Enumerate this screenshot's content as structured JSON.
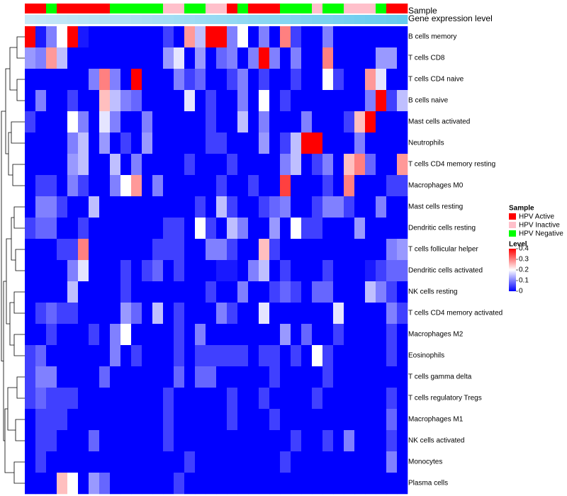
{
  "chart_data": {
    "type": "heatmap",
    "rows": [
      "B cells memory",
      "T cells CD8",
      "T cells CD4 naive",
      "B cells naive",
      "Mast cells activated",
      "Neutrophils",
      "T cells CD4 memory resting",
      "Macrophages M0",
      "Mast cells resting",
      "Dendritic cells resting",
      "T cells follicular helper",
      "Dendritic cells activated",
      "NK cells resting",
      "T cells CD4 memory activated",
      "Macrophages M2",
      "Eosinophils",
      "T cells gamma delta",
      "T cells regulatory  Tregs",
      "Macrophages M1",
      "NK cells activated",
      "Monocytes",
      "Plasma cells"
    ],
    "columns_count": 36,
    "sample_groups": [
      "HPV Active",
      "HPV Active",
      "HPV Negative",
      "HPV Active",
      "HPV Active",
      "HPV Active",
      "HPV Active",
      "HPV Active",
      "HPV Negative",
      "HPV Negative",
      "HPV Negative",
      "HPV Negative",
      "HPV Negative",
      "HPV Inactive",
      "HPV Inactive",
      "HPV Negative",
      "HPV Negative",
      "HPV Inactive",
      "HPV Inactive",
      "HPV Active",
      "HPV Negative",
      "HPV Active",
      "HPV Active",
      "HPV Active",
      "HPV Negative",
      "HPV Negative",
      "HPV Negative",
      "HPV Inactive",
      "HPV Negative",
      "HPV Negative",
      "HPV Inactive",
      "HPV Inactive",
      "HPV Inactive",
      "HPV Negative",
      "HPV Active",
      "HPV Active"
    ],
    "values": [
      [
        0.4,
        0.02,
        0.1,
        0.2,
        0.4,
        0.02,
        0.0,
        0.0,
        0.0,
        0.0,
        0.0,
        0.0,
        0.0,
        0.05,
        0.0,
        0.28,
        0.15,
        0.4,
        0.4,
        0.1,
        0.2,
        0.0,
        0.1,
        0.0,
        0.3,
        0.05,
        0.0,
        0.0,
        0.1,
        0.0,
        0.0,
        0.0,
        0.0,
        0.0,
        0.0,
        0.0
      ],
      [
        0.12,
        0.1,
        0.28,
        0.15,
        0.0,
        0.0,
        0.0,
        0.0,
        0.0,
        0.0,
        0.0,
        0.0,
        0.0,
        0.12,
        0.18,
        0.0,
        0.12,
        0.0,
        0.08,
        0.1,
        0.0,
        0.1,
        0.4,
        0.1,
        0.0,
        0.1,
        0.0,
        0.0,
        0.3,
        0.0,
        0.0,
        0.0,
        0.0,
        0.12,
        0.12,
        0.0
      ],
      [
        0.0,
        0.0,
        0.0,
        0.0,
        0.0,
        0.0,
        0.1,
        0.3,
        0.1,
        0.0,
        0.4,
        0.0,
        0.0,
        0.0,
        0.1,
        0.05,
        0.08,
        0.0,
        0.0,
        0.05,
        0.1,
        0.0,
        0.05,
        0.0,
        0.0,
        0.05,
        0.0,
        0.0,
        0.2,
        0.05,
        0.0,
        0.0,
        0.28,
        0.18,
        0.0,
        0.0
      ],
      [
        0.0,
        0.1,
        0.0,
        0.0,
        0.05,
        0.0,
        0.0,
        0.25,
        0.15,
        0.1,
        0.08,
        0.0,
        0.0,
        0.0,
        0.0,
        0.18,
        0.0,
        0.05,
        0.0,
        0.0,
        0.1,
        0.0,
        0.2,
        0.0,
        0.05,
        0.0,
        0.0,
        0.0,
        0.0,
        0.0,
        0.0,
        0.0,
        0.1,
        0.4,
        0.05,
        0.15
      ],
      [
        0.05,
        0.0,
        0.0,
        0.0,
        0.2,
        0.1,
        0.0,
        0.18,
        0.1,
        0.0,
        0.0,
        0.1,
        0.0,
        0.0,
        0.0,
        0.0,
        0.0,
        0.05,
        0.0,
        0.0,
        0.15,
        0.0,
        0.1,
        0.0,
        0.0,
        0.0,
        0.1,
        0.0,
        0.0,
        0.0,
        0.05,
        0.25,
        0.4,
        0.0,
        0.0,
        0.0
      ],
      [
        0.0,
        0.0,
        0.0,
        0.0,
        0.1,
        0.15,
        0.0,
        0.12,
        0.0,
        0.05,
        0.0,
        0.12,
        0.0,
        0.0,
        0.0,
        0.0,
        0.0,
        0.05,
        0.05,
        0.0,
        0.0,
        0.0,
        0.12,
        0.0,
        0.05,
        0.15,
        0.4,
        0.4,
        0.0,
        0.0,
        0.0,
        0.1,
        0.0,
        0.0,
        0.0,
        0.0
      ],
      [
        0.0,
        0.0,
        0.0,
        0.0,
        0.12,
        0.15,
        0.0,
        0.0,
        0.15,
        0.0,
        0.1,
        0.0,
        0.0,
        0.0,
        0.0,
        0.05,
        0.0,
        0.0,
        0.0,
        0.05,
        0.0,
        0.0,
        0.0,
        0.0,
        0.1,
        0.15,
        0.0,
        0.05,
        0.1,
        0.0,
        0.25,
        0.3,
        0.08,
        0.0,
        0.0,
        0.28
      ],
      [
        0.0,
        0.05,
        0.05,
        0.0,
        0.1,
        0.05,
        0.0,
        0.0,
        0.1,
        0.2,
        0.28,
        0.0,
        0.1,
        0.0,
        0.0,
        0.0,
        0.0,
        0.0,
        0.05,
        0.0,
        0.0,
        0.05,
        0.0,
        0.0,
        0.35,
        0.0,
        0.0,
        0.0,
        0.05,
        0.0,
        0.3,
        0.0,
        0.0,
        0.0,
        0.05,
        0.05
      ],
      [
        0.0,
        0.1,
        0.1,
        0.05,
        0.0,
        0.0,
        0.15,
        0.0,
        0.0,
        0.0,
        0.0,
        0.0,
        0.0,
        0.0,
        0.0,
        0.0,
        0.05,
        0.0,
        0.15,
        0.05,
        0.0,
        0.0,
        0.05,
        0.08,
        0.1,
        0.0,
        0.0,
        0.05,
        0.1,
        0.1,
        0.05,
        0.0,
        0.0,
        0.1,
        0.0,
        0.0
      ],
      [
        0.05,
        0.08,
        0.08,
        0.0,
        0.0,
        0.05,
        0.0,
        0.0,
        0.0,
        0.0,
        0.0,
        0.0,
        0.0,
        0.05,
        0.05,
        0.0,
        0.2,
        0.05,
        0.0,
        0.15,
        0.1,
        0.0,
        0.0,
        0.12,
        0.0,
        0.2,
        0.05,
        0.05,
        0.0,
        0.0,
        0.0,
        0.12,
        0.0,
        0.0,
        0.0,
        0.0
      ],
      [
        0.0,
        0.0,
        0.0,
        0.05,
        0.05,
        0.3,
        0.0,
        0.0,
        0.0,
        0.0,
        0.0,
        0.0,
        0.05,
        0.05,
        0.05,
        0.0,
        0.0,
        0.1,
        0.1,
        0.05,
        0.0,
        0.0,
        0.25,
        0.05,
        0.0,
        0.0,
        0.0,
        0.0,
        0.0,
        0.0,
        0.0,
        0.0,
        0.0,
        0.0,
        0.1,
        0.12
      ],
      [
        0.0,
        0.0,
        0.0,
        0.0,
        0.1,
        0.18,
        0.0,
        0.0,
        0.0,
        0.05,
        0.0,
        0.05,
        0.08,
        0.0,
        0.05,
        0.0,
        0.0,
        0.0,
        0.02,
        0.02,
        0.0,
        0.1,
        0.15,
        0.0,
        0.05,
        0.0,
        0.0,
        0.0,
        0.05,
        0.0,
        0.0,
        0.0,
        0.02,
        0.05,
        0.08,
        0.08
      ],
      [
        0.0,
        0.0,
        0.0,
        0.0,
        0.15,
        0.0,
        0.0,
        0.0,
        0.0,
        0.05,
        0.0,
        0.0,
        0.0,
        0.0,
        0.0,
        0.0,
        0.0,
        0.05,
        0.0,
        0.0,
        0.1,
        0.0,
        0.0,
        0.05,
        0.08,
        0.05,
        0.0,
        0.08,
        0.08,
        0.0,
        0.0,
        0.0,
        0.15,
        0.1,
        0.05,
        0.0
      ],
      [
        0.0,
        0.05,
        0.08,
        0.05,
        0.05,
        0.0,
        0.0,
        0.0,
        0.0,
        0.12,
        0.08,
        0.0,
        0.15,
        0.0,
        0.05,
        0.0,
        0.0,
        0.0,
        0.1,
        0.05,
        0.0,
        0.0,
        0.18,
        0.0,
        0.0,
        0.0,
        0.0,
        0.0,
        0.0,
        0.18,
        0.0,
        0.0,
        0.0,
        0.0,
        0.1,
        0.05
      ],
      [
        0.0,
        0.0,
        0.05,
        0.0,
        0.0,
        0.0,
        0.05,
        0.0,
        0.1,
        0.2,
        0.0,
        0.0,
        0.0,
        0.0,
        0.05,
        0.0,
        0.1,
        0.0,
        0.0,
        0.0,
        0.0,
        0.0,
        0.0,
        0.0,
        0.12,
        0.0,
        0.08,
        0.0,
        0.0,
        0.05,
        0.0,
        0.0,
        0.0,
        0.0,
        0.05,
        0.0
      ],
      [
        0.05,
        0.08,
        0.0,
        0.0,
        0.0,
        0.0,
        0.0,
        0.0,
        0.1,
        0.0,
        0.05,
        0.0,
        0.0,
        0.0,
        0.05,
        0.0,
        0.05,
        0.05,
        0.05,
        0.05,
        0.05,
        0.0,
        0.05,
        0.05,
        0.0,
        0.05,
        0.0,
        0.2,
        0.05,
        0.0,
        0.0,
        0.0,
        0.0,
        0.0,
        0.05,
        0.0
      ],
      [
        0.05,
        0.1,
        0.1,
        0.0,
        0.0,
        0.0,
        0.0,
        0.08,
        0.0,
        0.0,
        0.0,
        0.0,
        0.0,
        0.0,
        0.08,
        0.0,
        0.08,
        0.08,
        0.0,
        0.0,
        0.0,
        0.0,
        0.0,
        0.05,
        0.0,
        0.0,
        0.0,
        0.0,
        0.05,
        0.0,
        0.0,
        0.0,
        0.0,
        0.0,
        0.0,
        0.0
      ],
      [
        0.05,
        0.08,
        0.05,
        0.05,
        0.05,
        0.0,
        0.0,
        0.0,
        0.0,
        0.0,
        0.0,
        0.0,
        0.0,
        0.05,
        0.0,
        0.0,
        0.0,
        0.0,
        0.0,
        0.05,
        0.0,
        0.0,
        0.05,
        0.0,
        0.0,
        0.0,
        0.0,
        0.05,
        0.0,
        0.0,
        0.0,
        0.0,
        0.0,
        0.0,
        0.05,
        0.0
      ],
      [
        0.0,
        0.05,
        0.05,
        0.05,
        0.0,
        0.0,
        0.0,
        0.0,
        0.0,
        0.0,
        0.0,
        0.0,
        0.0,
        0.05,
        0.0,
        0.0,
        0.0,
        0.0,
        0.0,
        0.05,
        0.0,
        0.0,
        0.0,
        0.05,
        0.0,
        0.0,
        0.0,
        0.0,
        0.0,
        0.0,
        0.0,
        0.0,
        0.0,
        0.0,
        0.08,
        0.0
      ],
      [
        0.0,
        0.05,
        0.05,
        0.0,
        0.0,
        0.0,
        0.08,
        0.0,
        0.0,
        0.0,
        0.0,
        0.0,
        0.0,
        0.05,
        0.0,
        0.0,
        0.0,
        0.0,
        0.0,
        0.0,
        0.0,
        0.0,
        0.0,
        0.0,
        0.0,
        0.05,
        0.0,
        0.0,
        0.05,
        0.0,
        0.1,
        0.0,
        0.0,
        0.0,
        0.05,
        0.0
      ],
      [
        0.0,
        0.05,
        0.0,
        0.0,
        0.0,
        0.0,
        0.0,
        0.0,
        0.0,
        0.0,
        0.0,
        0.0,
        0.0,
        0.0,
        0.0,
        0.05,
        0.0,
        0.0,
        0.0,
        0.0,
        0.0,
        0.0,
        0.0,
        0.0,
        0.05,
        0.0,
        0.0,
        0.0,
        0.0,
        0.0,
        0.0,
        0.0,
        0.0,
        0.0,
        0.1,
        0.0
      ],
      [
        0.0,
        0.0,
        0.0,
        0.25,
        0.2,
        0.0,
        0.12,
        0.08,
        0.0,
        0.0,
        0.0,
        0.0,
        0.0,
        0.0,
        0.05,
        0.0,
        0.0,
        0.0,
        0.0,
        0.0,
        0.0,
        0.0,
        0.0,
        0.0,
        0.0,
        0.0,
        0.0,
        0.0,
        0.0,
        0.0,
        0.0,
        0.0,
        0.0,
        0.0,
        0.0,
        0.0
      ]
    ],
    "annotation_tracks": [
      "Sample",
      "Gene expression level"
    ],
    "legend_sample": {
      "title": "Sample",
      "items": [
        {
          "label": "HPV Active",
          "color": "#ff0000"
        },
        {
          "label": "HPV Inactive",
          "color": "#ffc0cb"
        },
        {
          "label": "HPV Negative",
          "color": "#00ff00"
        }
      ]
    },
    "legend_level": {
      "title": "Level",
      "ticks": [
        "0.4",
        "0.3",
        "0.2",
        "0.1",
        "0"
      ],
      "tick_values": [
        0.4,
        0.3,
        0.2,
        0.1,
        0
      ],
      "range": [
        0,
        0.4
      ]
    },
    "colors": {
      "low": "#0000ff",
      "mid": "#ffffff",
      "high": "#ff0000",
      "expression_track": "#66ccee"
    },
    "legend_placement": "right"
  }
}
